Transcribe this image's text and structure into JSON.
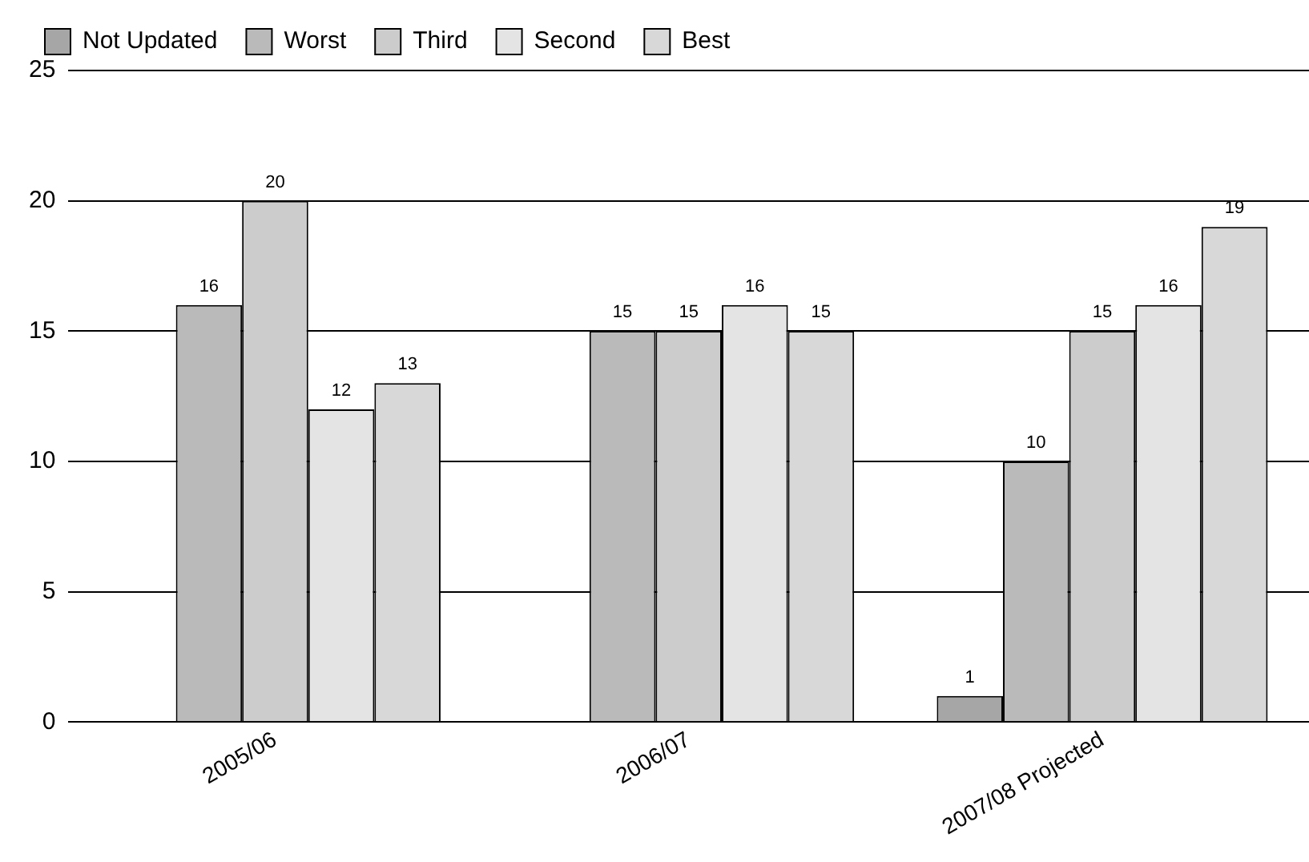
{
  "chart_data": {
    "type": "bar",
    "categories": [
      "2005/06",
      "2006/07",
      "2007/08 Projected"
    ],
    "series": [
      {
        "name": "Not Updated",
        "color": "#a6a6a6",
        "values": [
          null,
          null,
          1
        ]
      },
      {
        "name": "Worst",
        "color": "#bababa",
        "values": [
          16,
          15,
          10
        ]
      },
      {
        "name": "Third",
        "color": "#cccccc",
        "values": [
          20,
          15,
          15
        ]
      },
      {
        "name": "Second",
        "color": "#e4e4e4",
        "values": [
          12,
          16,
          16
        ]
      },
      {
        "name": "Best",
        "color": "#d8d8d8",
        "values": [
          13,
          15,
          19
        ]
      }
    ],
    "ylim": [
      0,
      25
    ],
    "yticks": [
      0,
      5,
      10,
      15,
      20,
      25
    ],
    "grid": "y",
    "legend": "top left",
    "data_labels": true
  }
}
